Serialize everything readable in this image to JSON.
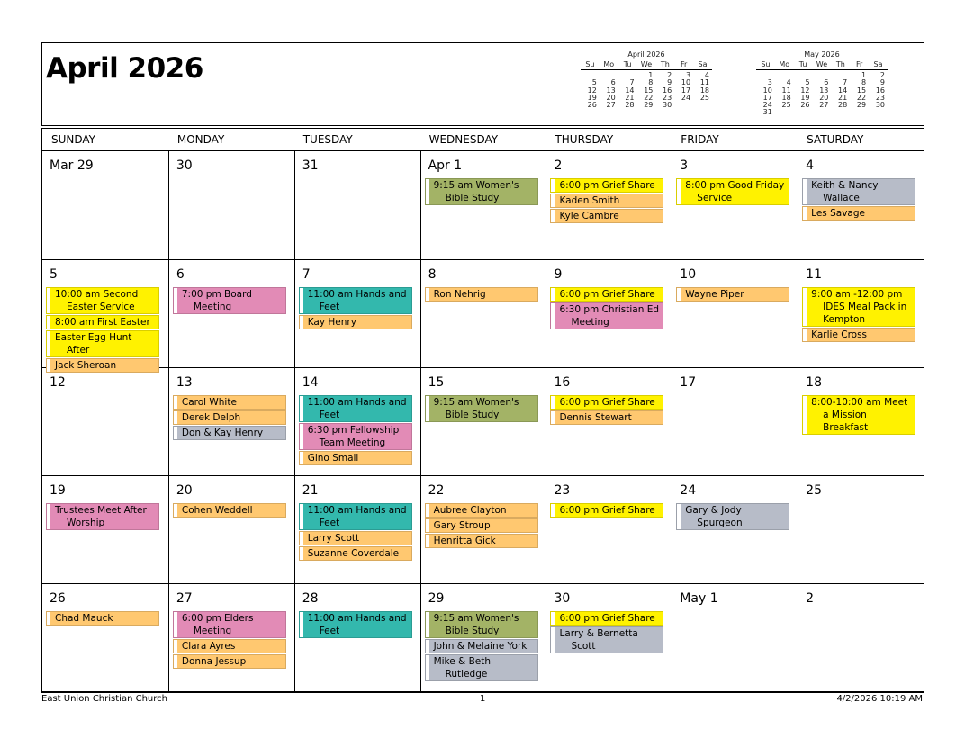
{
  "header": {
    "title": "April 2026"
  },
  "colors": {
    "yellow": "#fff200",
    "orange": "#ffc870",
    "pink": "#e28bb6",
    "teal": "#33b8ad",
    "olive": "#a3b366",
    "gray": "#b7bcc8"
  },
  "mini_calendars": [
    {
      "title": "April 2026",
      "weekdays": [
        "Su",
        "Mo",
        "Tu",
        "We",
        "Th",
        "Fr",
        "Sa"
      ],
      "weeks": [
        [
          "",
          "",
          "",
          "1",
          "2",
          "3",
          "4"
        ],
        [
          "5",
          "6",
          "7",
          "8",
          "9",
          "10",
          "11"
        ],
        [
          "12",
          "13",
          "14",
          "15",
          "16",
          "17",
          "18"
        ],
        [
          "19",
          "20",
          "21",
          "22",
          "23",
          "24",
          "25"
        ],
        [
          "26",
          "27",
          "28",
          "29",
          "30",
          "",
          ""
        ]
      ]
    },
    {
      "title": "May 2026",
      "weekdays": [
        "Su",
        "Mo",
        "Tu",
        "We",
        "Th",
        "Fr",
        "Sa"
      ],
      "weeks": [
        [
          "",
          "",
          "",
          "",
          "",
          "1",
          "2"
        ],
        [
          "3",
          "4",
          "5",
          "6",
          "7",
          "8",
          "9"
        ],
        [
          "10",
          "11",
          "12",
          "13",
          "14",
          "15",
          "16"
        ],
        [
          "17",
          "18",
          "19",
          "20",
          "21",
          "22",
          "23"
        ],
        [
          "24",
          "25",
          "26",
          "27",
          "28",
          "29",
          "30"
        ],
        [
          "31",
          "",
          "",
          "",
          "",
          "",
          ""
        ]
      ]
    }
  ],
  "weekdays": [
    "SUNDAY",
    "MONDAY",
    "TUESDAY",
    "WEDNESDAY",
    "THURSDAY",
    "FRIDAY",
    "SATURDAY"
  ],
  "weeks": [
    [
      {
        "label": "Mar 29",
        "events": []
      },
      {
        "label": "30",
        "events": []
      },
      {
        "label": "31",
        "events": []
      },
      {
        "label": "Apr 1",
        "events": [
          {
            "text": "9:15 am Women's Bible Study",
            "color": "olive"
          }
        ]
      },
      {
        "label": "2",
        "events": [
          {
            "text": "6:00 pm Grief Share",
            "color": "yellow"
          },
          {
            "text": "Kaden Smith",
            "color": "orange"
          },
          {
            "text": "Kyle Cambre",
            "color": "orange"
          }
        ]
      },
      {
        "label": "3",
        "events": [
          {
            "text": "8:00 pm Good Friday Service",
            "color": "yellow"
          }
        ]
      },
      {
        "label": "4",
        "events": [
          {
            "text": "Keith & Nancy Wallace",
            "color": "gray"
          },
          {
            "text": "Les Savage",
            "color": "orange"
          }
        ]
      }
    ],
    [
      {
        "label": "5",
        "events": [
          {
            "text": "10:00 am Second Easter Service",
            "color": "yellow"
          },
          {
            "text": "8:00 am First Easter",
            "color": "yellow"
          },
          {
            "text": "Easter Egg Hunt After",
            "color": "yellow"
          },
          {
            "text": "Jack Sheroan",
            "color": "orange"
          }
        ]
      },
      {
        "label": "6",
        "events": [
          {
            "text": "7:00 pm Board Meeting",
            "color": "pink"
          }
        ]
      },
      {
        "label": "7",
        "events": [
          {
            "text": "11:00 am Hands and Feet",
            "color": "teal"
          },
          {
            "text": "Kay Henry",
            "color": "orange"
          }
        ]
      },
      {
        "label": "8",
        "events": [
          {
            "text": "Ron Nehrig",
            "color": "orange"
          }
        ]
      },
      {
        "label": "9",
        "events": [
          {
            "text": "6:00 pm Grief Share",
            "color": "yellow"
          },
          {
            "text": "6:30 pm Christian Ed Meeting",
            "color": "pink"
          }
        ]
      },
      {
        "label": "10",
        "events": [
          {
            "text": "Wayne Piper",
            "color": "orange"
          }
        ]
      },
      {
        "label": "11",
        "events": [
          {
            "text": "9:00 am -12:00 pm IDES Meal Pack in Kempton",
            "color": "yellow"
          },
          {
            "text": "Karlie Cross",
            "color": "orange"
          }
        ]
      }
    ],
    [
      {
        "label": "12",
        "events": []
      },
      {
        "label": "13",
        "events": [
          {
            "text": "Carol White",
            "color": "orange"
          },
          {
            "text": "Derek Delph",
            "color": "orange"
          },
          {
            "text": "Don & Kay Henry",
            "color": "gray"
          }
        ]
      },
      {
        "label": "14",
        "events": [
          {
            "text": "11:00 am Hands and Feet",
            "color": "teal"
          },
          {
            "text": "6:30 pm Fellowship Team Meeting",
            "color": "pink"
          },
          {
            "text": "Gino Small",
            "color": "orange"
          }
        ]
      },
      {
        "label": "15",
        "events": [
          {
            "text": "9:15 am Women's Bible Study",
            "color": "olive"
          }
        ]
      },
      {
        "label": "16",
        "events": [
          {
            "text": "6:00 pm Grief Share",
            "color": "yellow"
          },
          {
            "text": "Dennis Stewart",
            "color": "orange"
          }
        ]
      },
      {
        "label": "17",
        "events": []
      },
      {
        "label": "18",
        "events": [
          {
            "text": "8:00-10:00 am Meet a Mission Breakfast",
            "color": "yellow"
          }
        ]
      }
    ],
    [
      {
        "label": "19",
        "events": [
          {
            "text": "Trustees Meet After Worship",
            "color": "pink"
          }
        ]
      },
      {
        "label": "20",
        "events": [
          {
            "text": "Cohen Weddell",
            "color": "orange"
          }
        ]
      },
      {
        "label": "21",
        "events": [
          {
            "text": "11:00 am Hands and Feet",
            "color": "teal"
          },
          {
            "text": "Larry Scott",
            "color": "orange"
          },
          {
            "text": "Suzanne Coverdale",
            "color": "orange"
          }
        ]
      },
      {
        "label": "22",
        "events": [
          {
            "text": "Aubree Clayton",
            "color": "orange"
          },
          {
            "text": "Gary Stroup",
            "color": "orange"
          },
          {
            "text": "Henritta Gick",
            "color": "orange"
          }
        ]
      },
      {
        "label": "23",
        "events": [
          {
            "text": "6:00 pm Grief Share",
            "color": "yellow"
          }
        ]
      },
      {
        "label": "24",
        "events": [
          {
            "text": "Gary & Jody Spurgeon",
            "color": "gray"
          }
        ]
      },
      {
        "label": "25",
        "events": []
      }
    ],
    [
      {
        "label": "26",
        "events": [
          {
            "text": "Chad Mauck",
            "color": "orange"
          }
        ]
      },
      {
        "label": "27",
        "events": [
          {
            "text": "6:00 pm Elders Meeting",
            "color": "pink"
          },
          {
            "text": "Clara Ayres",
            "color": "orange"
          },
          {
            "text": "Donna Jessup",
            "color": "orange"
          }
        ]
      },
      {
        "label": "28",
        "events": [
          {
            "text": "11:00 am Hands and Feet",
            "color": "teal"
          }
        ]
      },
      {
        "label": "29",
        "events": [
          {
            "text": "9:15 am Women's Bible Study",
            "color": "olive"
          },
          {
            "text": "John & Melaine York",
            "color": "gray"
          },
          {
            "text": "Mike & Beth Rutledge",
            "color": "gray"
          }
        ]
      },
      {
        "label": "30",
        "events": [
          {
            "text": "6:00 pm Grief Share",
            "color": "yellow"
          },
          {
            "text": "Larry & Bernetta Scott",
            "color": "gray"
          }
        ]
      },
      {
        "label": "May 1",
        "events": []
      },
      {
        "label": "2",
        "events": []
      }
    ]
  ],
  "footer": {
    "organization": "East Union Christian Church",
    "page": "1",
    "printed": "4/2/2026 10:19 AM"
  }
}
